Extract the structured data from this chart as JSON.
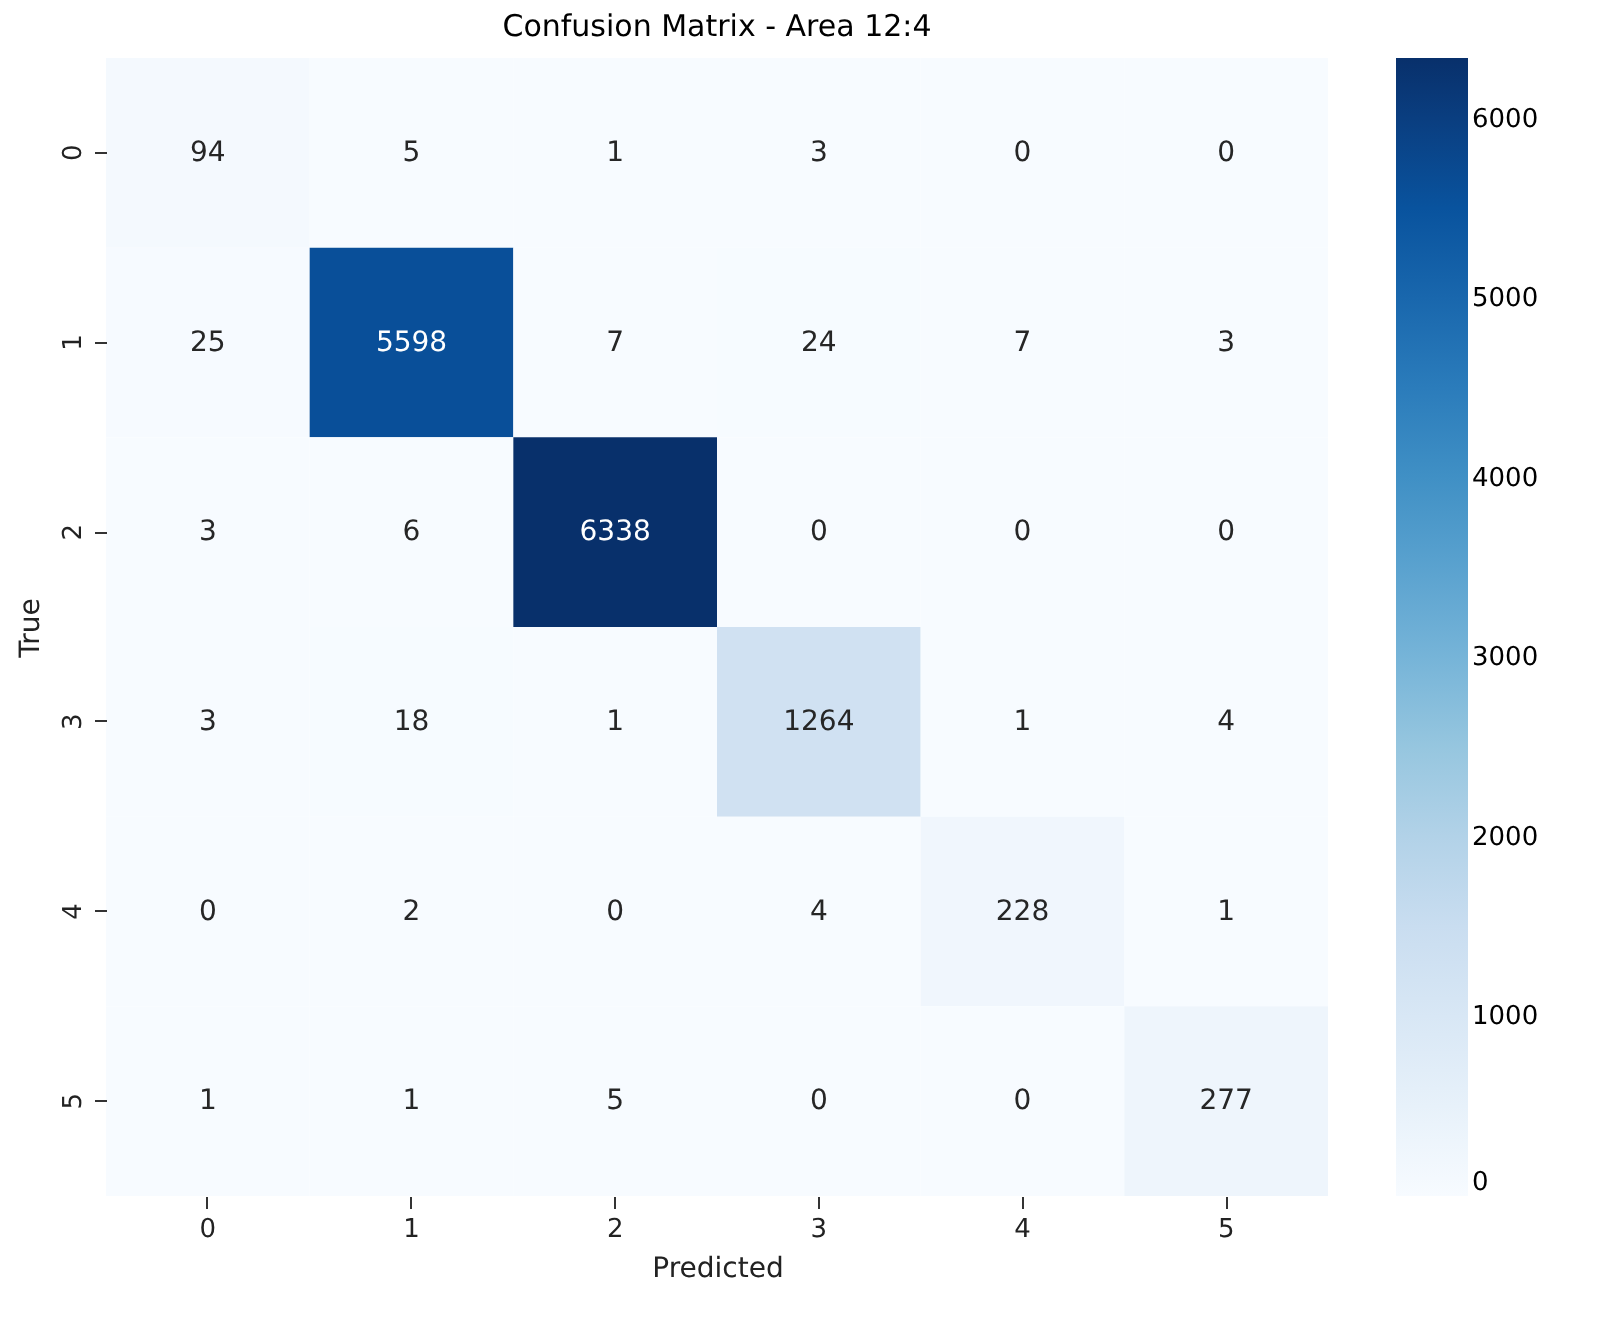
{
  "chart_data": {
    "type": "heatmap",
    "title": "Confusion Matrix - Area 12:4",
    "xlabel": "Predicted",
    "ylabel": "True",
    "categories": [
      "0",
      "1",
      "2",
      "3",
      "4",
      "5"
    ],
    "y_categories": [
      "0",
      "1",
      "2",
      "3",
      "4",
      "5"
    ],
    "cells": [
      [
        94,
        5,
        1,
        3,
        0,
        0
      ],
      [
        25,
        5598,
        7,
        24,
        7,
        3
      ],
      [
        3,
        6,
        6338,
        0,
        0,
        0
      ],
      [
        3,
        18,
        1,
        1264,
        1,
        4
      ],
      [
        0,
        2,
        0,
        4,
        228,
        1
      ],
      [
        1,
        1,
        5,
        0,
        0,
        277
      ]
    ],
    "clim": [
      0,
      6338
    ],
    "cticks": [
      0,
      1000,
      2000,
      3000,
      4000,
      5000,
      6000
    ],
    "data_labels": true
  }
}
